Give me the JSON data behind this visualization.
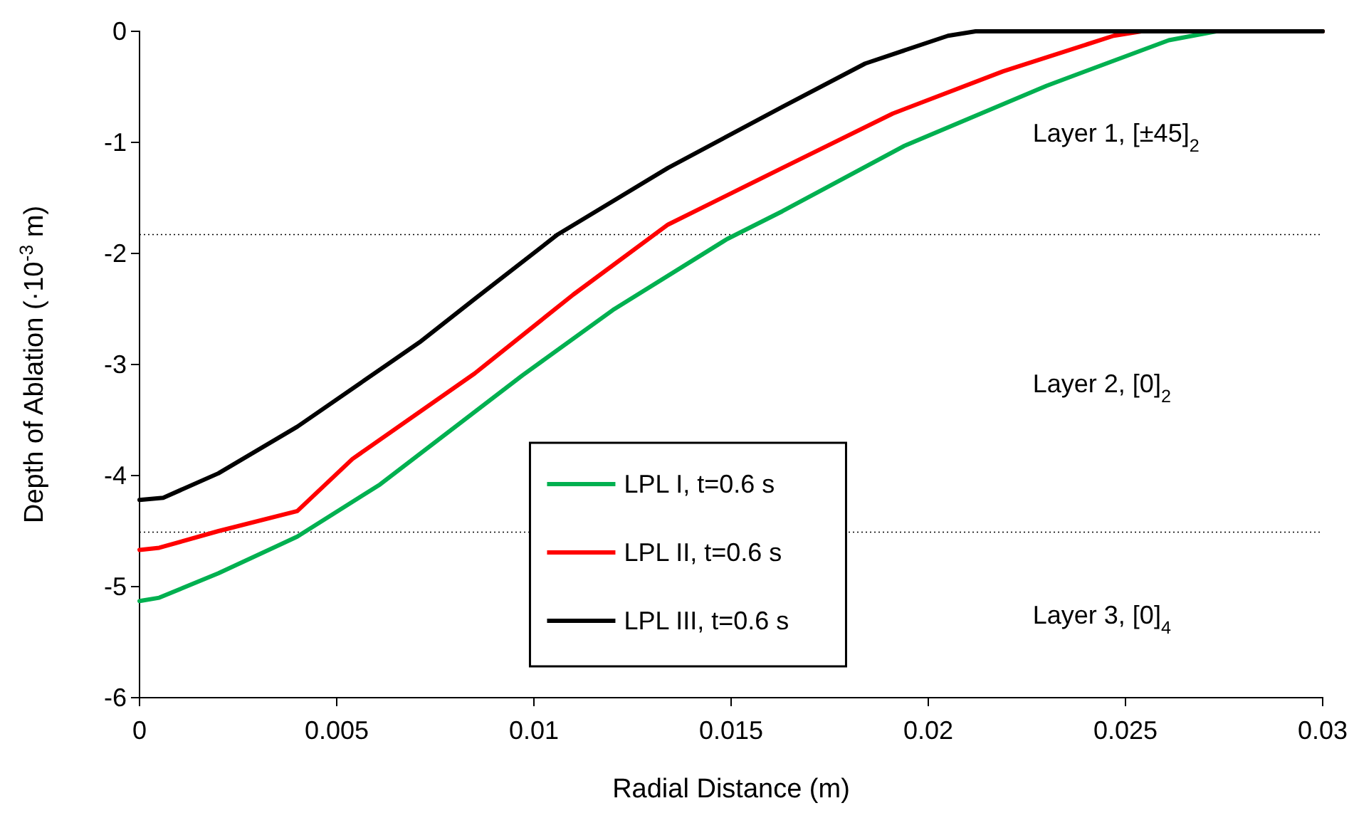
{
  "chart_data": {
    "type": "line",
    "xlabel": "Radial Distance (m)",
    "ylabel": "Depth of Ablation (·10$^{-3}$ m)",
    "xlim": [
      0,
      0.03
    ],
    "ylim": [
      -6,
      0
    ],
    "xticks": [
      0,
      0.005,
      0.01,
      0.015,
      0.02,
      0.025,
      0.03
    ],
    "yticks": [
      -6,
      -5,
      -4,
      -3,
      -2,
      -1,
      0
    ],
    "grid": false,
    "legend": "bottom",
    "line_style": "solid",
    "marker": "none",
    "series": [
      {
        "name": "LPL I, t=0.6 s",
        "color": "#00b050",
        "x": [
          0,
          0.0005,
          0.002,
          0.004,
          0.0061,
          0.0097,
          0.012,
          0.0149,
          0.0163,
          0.0194,
          0.023,
          0.0261,
          0.0273,
          0.03
        ],
        "values": [
          -5.13,
          -5.1,
          -4.88,
          -4.55,
          -4.08,
          -3.1,
          -2.51,
          -1.87,
          -1.62,
          -1.03,
          -0.49,
          -0.08,
          0,
          0
        ]
      },
      {
        "name": "LPL II, t=0.6 s",
        "color": "#ff0000",
        "x": [
          0,
          0.0005,
          0.002,
          0.004,
          0.0054,
          0.0085,
          0.011,
          0.0134,
          0.0163,
          0.0191,
          0.0219,
          0.0247,
          0.0254,
          0.03
        ],
        "values": [
          -4.67,
          -4.65,
          -4.5,
          -4.32,
          -3.85,
          -3.08,
          -2.37,
          -1.74,
          -1.23,
          -0.74,
          -0.36,
          -0.04,
          0,
          0
        ]
      },
      {
        "name": "LPL III, t=0.6 s",
        "color": "#000000",
        "x": [
          0,
          0.0006,
          0.002,
          0.004,
          0.0071,
          0.0085,
          0.0106,
          0.0134,
          0.0163,
          0.0184,
          0.0205,
          0.0212,
          0.03
        ],
        "values": [
          -4.22,
          -4.2,
          -3.98,
          -3.56,
          -2.8,
          -2.41,
          -1.83,
          -1.23,
          -0.68,
          -0.29,
          -0.04,
          0,
          0
        ]
      }
    ],
    "ref_lines": [
      {
        "axis": "y",
        "value": -1.83,
        "color": "#000000",
        "line_style": "dotted"
      },
      {
        "axis": "y",
        "value": -4.51,
        "color": "#000000",
        "line_style": "dotted"
      }
    ],
    "annotations": [
      "Layer 1,  [±45]$_{2}$",
      "Layer 2, [0]$_{2}$",
      "Layer 3, [0]$_{4}$"
    ]
  }
}
